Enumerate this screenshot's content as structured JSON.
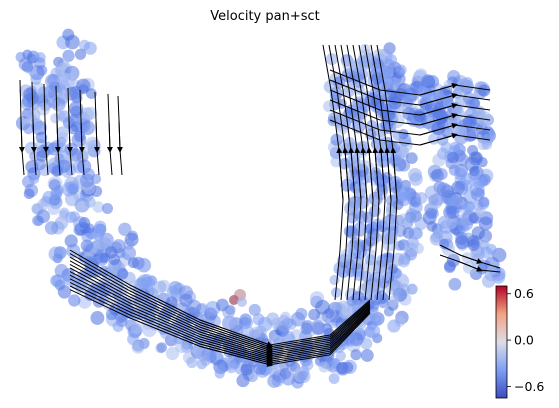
{
  "chart_data": {
    "type": "scatter",
    "title": "Velocity pan+sct",
    "xlabel": "",
    "ylabel": "",
    "grid": false,
    "overlay": "velocity streamlines",
    "colormap": {
      "name": "coolwarm",
      "low_color": "#4c6fe0",
      "mid_color": "#dcdde6",
      "high_color": "#b40426",
      "range": [
        -0.75,
        0.7
      ]
    },
    "colorbar": {
      "ticks": [
        0.6,
        0.0,
        -0.6
      ],
      "tick_labels": [
        "0.6",
        "0.0",
        "−0.6"
      ],
      "placement": "right"
    },
    "highlight_cluster": {
      "value": 0.6,
      "note": ""
    }
  }
}
